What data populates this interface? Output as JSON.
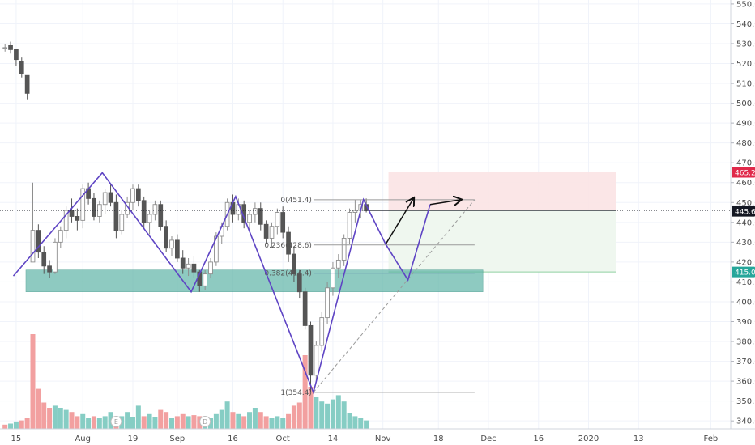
{
  "chart_data": {
    "type": "candlestick",
    "y_axis": {
      "position": "right",
      "range": [
        336,
        552
      ],
      "ticks": [
        "340.0",
        "350.0",
        "360.0",
        "370.0",
        "380.0",
        "390.0",
        "400.0",
        "410.0",
        "420.0",
        "430.0",
        "440.0",
        "450.0",
        "460.0",
        "470.0",
        "480.0",
        "490.0",
        "500.0",
        "510.0",
        "520.0",
        "530.0",
        "540.0",
        "550.0"
      ]
    },
    "x_axis": {
      "labels": [
        {
          "label": "15",
          "idx": 2
        },
        {
          "label": "Aug",
          "idx": 14
        },
        {
          "label": "19",
          "idx": 23
        },
        {
          "label": "Sep",
          "idx": 31
        },
        {
          "label": "16",
          "idx": 41
        },
        {
          "label": "Oct",
          "idx": 50
        },
        {
          "label": "14",
          "idx": 59
        },
        {
          "label": "Nov",
          "idx": 68
        },
        {
          "label": "18",
          "idx": 78
        },
        {
          "label": "Dec",
          "idx": 87
        },
        {
          "label": "16",
          "idx": 96
        },
        {
          "label": "2020",
          "idx": 105
        },
        {
          "label": "13",
          "idx": 114
        },
        {
          "label": "Feb",
          "idx": 127
        }
      ]
    },
    "price_badges": [
      {
        "label": "465.2",
        "value": 465.2,
        "color": "#e0294a"
      },
      {
        "label": "446.0",
        "value": 446.0,
        "color": "#e1e3ea",
        "text_color": "#131722"
      },
      {
        "label": "445.6",
        "value": 445.6,
        "color": "#131722"
      },
      {
        "label": "415.0",
        "value": 415.0,
        "color": "#26a69a"
      }
    ],
    "fib_levels": [
      {
        "label": "0(451.4)",
        "value": 451.4
      },
      {
        "label": "0.236(428.6)",
        "value": 428.6
      },
      {
        "label": "0.382(414.4)",
        "value": 414.4
      },
      {
        "label": "1(354.4)",
        "value": 354.4
      }
    ],
    "event_markers": [
      {
        "label": "E",
        "idx": 20
      },
      {
        "label": "D",
        "idx": 36
      }
    ],
    "zones": {
      "support": {
        "from_idx": 0,
        "to_idx": 86,
        "low": 405,
        "high": 416,
        "color": "#5fb5a7"
      },
      "stop": {
        "from_idx": 69,
        "to_idx": 110,
        "low": 446,
        "high": 465.2,
        "color": "#fbe3e4"
      },
      "target": {
        "from_idx": 69,
        "to_idx": 110,
        "low": 415,
        "high": 446,
        "color": "#eef7ee"
      }
    },
    "pattern_lines": [
      {
        "color": "#5e44c4",
        "points": [
          [
            1.5,
            413
          ],
          [
            17.5,
            465
          ],
          [
            33.5,
            405
          ],
          [
            41.5,
            453
          ],
          [
            55.5,
            354.4
          ],
          [
            64.5,
            451.5
          ],
          [
            68.5,
            429
          ],
          [
            72.5,
            411
          ],
          [
            76.5,
            449
          ]
        ]
      }
    ],
    "arrows": [
      {
        "from": [
          68.5,
          429
        ],
        "to": [
          73.5,
          452
        ]
      },
      {
        "from": [
          76.5,
          449
        ],
        "to": [
          82,
          451.4
        ]
      }
    ],
    "candles": [
      [
        0,
        528,
        530,
        526,
        528
      ],
      [
        1,
        529,
        531,
        525,
        527
      ],
      [
        2,
        527,
        527,
        519,
        522
      ],
      [
        3,
        521,
        523,
        513,
        515
      ],
      [
        4,
        514,
        514,
        502,
        505
      ],
      [
        5,
        420,
        460,
        420,
        436
      ],
      [
        6,
        436,
        439,
        422,
        425
      ],
      [
        7,
        425,
        428,
        414,
        418
      ],
      [
        8,
        418,
        421,
        412,
        415
      ],
      [
        9,
        415,
        432,
        414,
        430
      ],
      [
        10,
        430,
        438,
        427,
        436
      ],
      [
        11,
        436,
        448,
        432,
        446
      ],
      [
        12,
        446,
        452,
        440,
        443
      ],
      [
        13,
        443,
        447,
        436,
        441
      ],
      [
        14,
        441,
        459,
        437,
        457
      ],
      [
        15,
        457,
        460,
        449,
        452
      ],
      [
        16,
        452,
        455,
        441,
        443
      ],
      [
        17,
        443,
        451,
        440,
        449
      ],
      [
        18,
        449,
        457,
        444,
        455
      ],
      [
        19,
        455,
        459,
        448,
        450
      ],
      [
        20,
        450,
        454,
        432,
        436
      ],
      [
        21,
        436,
        446,
        434,
        444
      ],
      [
        22,
        444,
        453,
        442,
        450
      ],
      [
        23,
        450,
        459,
        446,
        457
      ],
      [
        24,
        457,
        459,
        448,
        451
      ],
      [
        25,
        451,
        453,
        437,
        440
      ],
      [
        26,
        440,
        446,
        434,
        444
      ],
      [
        27,
        444,
        451,
        441,
        449
      ],
      [
        28,
        449,
        451,
        436,
        438
      ],
      [
        29,
        438,
        441,
        425,
        427
      ],
      [
        30,
        427,
        433,
        423,
        431
      ],
      [
        31,
        431,
        434,
        420,
        422
      ],
      [
        32,
        422,
        426,
        414,
        417
      ],
      [
        33,
        417,
        422,
        413,
        419
      ],
      [
        34,
        419,
        423,
        412,
        415
      ],
      [
        35,
        415,
        416,
        405,
        408
      ],
      [
        36,
        408,
        416,
        406,
        414
      ],
      [
        37,
        414,
        422,
        412,
        420
      ],
      [
        38,
        420,
        435,
        418,
        433
      ],
      [
        39,
        433,
        440,
        429,
        438
      ],
      [
        40,
        438,
        452,
        436,
        450
      ],
      [
        41,
        450,
        454,
        440,
        444
      ],
      [
        42,
        444,
        452,
        441,
        449
      ],
      [
        43,
        449,
        451,
        437,
        440
      ],
      [
        44,
        440,
        446,
        436,
        444
      ],
      [
        45,
        444,
        450,
        440,
        447
      ],
      [
        46,
        447,
        450,
        436,
        439
      ],
      [
        47,
        439,
        441,
        429,
        432
      ],
      [
        48,
        432,
        440,
        427,
        438
      ],
      [
        49,
        438,
        447,
        434,
        445
      ],
      [
        50,
        445,
        448,
        432,
        435
      ],
      [
        51,
        435,
        438,
        420,
        424
      ],
      [
        52,
        424,
        428,
        410,
        414
      ],
      [
        53,
        414,
        416,
        402,
        405
      ],
      [
        54,
        405,
        407,
        386,
        388
      ],
      [
        55,
        388,
        390,
        354.4,
        363
      ],
      [
        56,
        363,
        380,
        360,
        378
      ],
      [
        57,
        378,
        395,
        375,
        392
      ],
      [
        58,
        392,
        410,
        389,
        407
      ],
      [
        59,
        407,
        420,
        403,
        417
      ],
      [
        60,
        417,
        424,
        412,
        421
      ],
      [
        61,
        421,
        434,
        418,
        432
      ],
      [
        62,
        432,
        447,
        429,
        445
      ],
      [
        63,
        445,
        451.4,
        440,
        446
      ],
      [
        64,
        446,
        451.4,
        442,
        449
      ],
      [
        65,
        449,
        452,
        445,
        446
      ]
    ],
    "volume": {
      "max": 100,
      "values": [
        [
          0,
          4,
          "down"
        ],
        [
          1,
          5,
          "up"
        ],
        [
          2,
          7,
          "up"
        ],
        [
          3,
          8,
          "down"
        ],
        [
          4,
          10,
          "down"
        ],
        [
          5,
          90,
          "down"
        ],
        [
          6,
          38,
          "down"
        ],
        [
          7,
          25,
          "down"
        ],
        [
          8,
          20,
          "down"
        ],
        [
          9,
          22,
          "up"
        ],
        [
          10,
          20,
          "up"
        ],
        [
          11,
          18,
          "up"
        ],
        [
          12,
          16,
          "down"
        ],
        [
          13,
          12,
          "down"
        ],
        [
          14,
          14,
          "up"
        ],
        [
          15,
          10,
          "up"
        ],
        [
          16,
          12,
          "down"
        ],
        [
          17,
          10,
          "up"
        ],
        [
          18,
          12,
          "up"
        ],
        [
          19,
          16,
          "up"
        ],
        [
          20,
          8,
          "down"
        ],
        [
          21,
          12,
          "up"
        ],
        [
          22,
          16,
          "up"
        ],
        [
          23,
          11,
          "up"
        ],
        [
          24,
          22,
          "up"
        ],
        [
          25,
          12,
          "down"
        ],
        [
          26,
          14,
          "up"
        ],
        [
          27,
          11,
          "up"
        ],
        [
          28,
          18,
          "down"
        ],
        [
          29,
          16,
          "down"
        ],
        [
          30,
          10,
          "up"
        ],
        [
          31,
          12,
          "down"
        ],
        [
          32,
          14,
          "down"
        ],
        [
          33,
          12,
          "up"
        ],
        [
          34,
          13,
          "down"
        ],
        [
          35,
          12,
          "down"
        ],
        [
          36,
          8,
          "up"
        ],
        [
          37,
          10,
          "up"
        ],
        [
          38,
          14,
          "up"
        ],
        [
          39,
          18,
          "up"
        ],
        [
          40,
          26,
          "up"
        ],
        [
          41,
          16,
          "down"
        ],
        [
          42,
          14,
          "up"
        ],
        [
          43,
          12,
          "down"
        ],
        [
          44,
          16,
          "up"
        ],
        [
          45,
          20,
          "up"
        ],
        [
          46,
          16,
          "down"
        ],
        [
          47,
          12,
          "down"
        ],
        [
          48,
          10,
          "up"
        ],
        [
          49,
          12,
          "up"
        ],
        [
          50,
          10,
          "up"
        ],
        [
          51,
          14,
          "down"
        ],
        [
          52,
          22,
          "down"
        ],
        [
          53,
          25,
          "down"
        ],
        [
          54,
          70,
          "down"
        ],
        [
          55,
          40,
          "down"
        ],
        [
          56,
          30,
          "up"
        ],
        [
          57,
          26,
          "up"
        ],
        [
          58,
          24,
          "up"
        ],
        [
          59,
          28,
          "up"
        ],
        [
          60,
          32,
          "up"
        ],
        [
          61,
          26,
          "up"
        ],
        [
          62,
          15,
          "up"
        ],
        [
          63,
          12,
          "up"
        ],
        [
          64,
          10,
          "up"
        ],
        [
          65,
          8,
          "up"
        ]
      ]
    },
    "colors": {
      "up": "#8e8e8e",
      "down": "#555555",
      "vol_up": "#86cdc4",
      "vol_down": "#f2a0a0"
    }
  }
}
